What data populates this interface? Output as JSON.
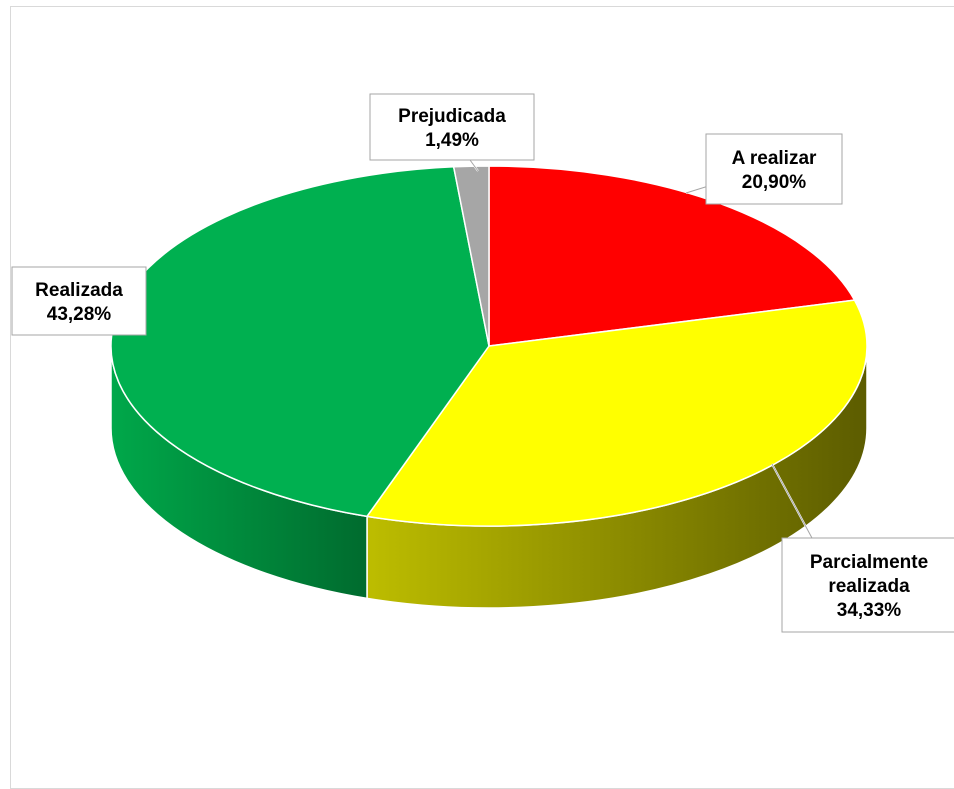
{
  "chart_data": {
    "type": "pie",
    "title": "",
    "slices": [
      {
        "name": "A realizar",
        "value": 20.9,
        "label": "20,90%",
        "color": "#ff0000",
        "side_color": "#b00000"
      },
      {
        "name": "Parcialmente realizada",
        "value": 34.33,
        "label": "34,33%",
        "color": "#ffff00",
        "side_color": "#6b6b00"
      },
      {
        "name": "Realizada",
        "value": 43.28,
        "label": "43,28%",
        "color": "#00b050",
        "side_color": "#007a38"
      },
      {
        "name": "Prejudicada",
        "value": 1.49,
        "label": "1,49%",
        "color": "#a6a6a6",
        "side_color": "#6e6e6e"
      }
    ],
    "legend": "none",
    "data_labels": true
  }
}
